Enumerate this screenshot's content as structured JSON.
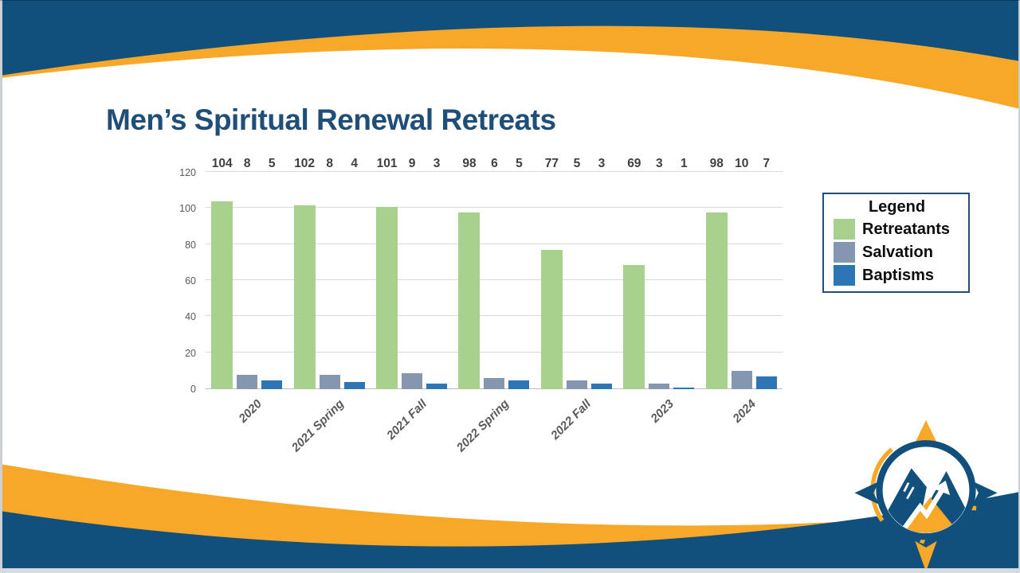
{
  "slide": {
    "title": "Men’s Spiritual Renewal Retreats"
  },
  "colors": {
    "navy_band": "#11507C",
    "orange_band": "#F8A829",
    "title_blue": "#1F4E79",
    "grid": "#D9D9D9",
    "axis_text": "#595959",
    "value_label_text": "#3F3F3F",
    "legend_border": "#1F4E79",
    "series_green": "#A9D18E",
    "series_blue_gray": "#8496B0",
    "series_blue": "#2E75B6"
  },
  "legend": {
    "title": "Legend",
    "items": [
      {
        "label": "Retreatants",
        "color": "#A9D18E"
      },
      {
        "label": "Salvation",
        "color": "#8496B0"
      },
      {
        "label": "Baptisms",
        "color": "#2E75B6"
      }
    ]
  },
  "chart_data": {
    "type": "bar",
    "title": "",
    "xlabel": "",
    "ylabel": "",
    "categories": [
      "2020",
      "2021 Spring",
      "2021 Fall",
      "2022 Spring",
      "2022 Fall",
      "2023",
      "2024"
    ],
    "series": [
      {
        "name": "Retreatants",
        "color": "#A9D18E",
        "values": [
          104,
          102,
          101,
          98,
          77,
          69,
          98
        ]
      },
      {
        "name": "Salvation",
        "color": "#8496B0",
        "values": [
          8,
          8,
          9,
          6,
          5,
          3,
          10
        ]
      },
      {
        "name": "Baptisms",
        "color": "#2E75B6",
        "values": [
          5,
          4,
          3,
          5,
          3,
          1,
          7
        ]
      }
    ],
    "ylim": [
      0,
      120
    ],
    "ytick_step": 20,
    "grid": true,
    "legend_position": "right"
  },
  "logo": {
    "name": "mountain-compass-logo"
  }
}
